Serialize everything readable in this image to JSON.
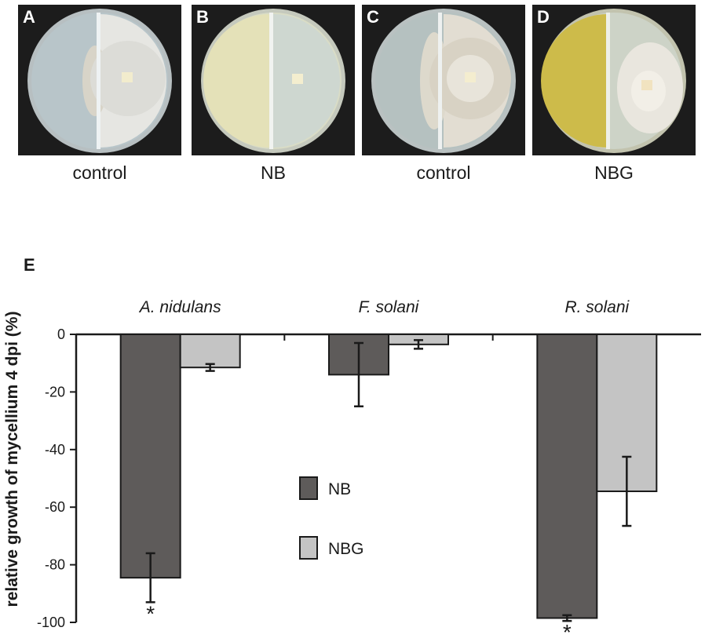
{
  "panels": [
    {
      "letter": "A",
      "caption": "control"
    },
    {
      "letter": "B",
      "caption": "NB"
    },
    {
      "letter": "C",
      "caption": "control"
    },
    {
      "letter": "D",
      "caption": "NBG"
    }
  ],
  "panel_e_letter": "E",
  "chart_data": {
    "type": "bar",
    "title": "",
    "xlabel": "",
    "ylabel": "relative growth of mycellium 4 dpi (%)",
    "ylim": [
      -100,
      0
    ],
    "yticks": [
      0,
      -20,
      -40,
      -60,
      -80,
      -100
    ],
    "ytick_labels": [
      "0",
      "-20",
      "-40",
      "-60",
      "-80",
      "-100"
    ],
    "categories": [
      "A. nidulans",
      "F. solani",
      "R. solani"
    ],
    "series": [
      {
        "name": "NB",
        "color": "#5e5b5a",
        "values": [
          -84.5,
          -14,
          -98.5
        ],
        "errors": [
          8.5,
          11,
          1
        ],
        "significance": [
          "*",
          "",
          "*"
        ]
      },
      {
        "name": "NBG",
        "color": "#c4c4c4",
        "values": [
          -11.5,
          -3.5,
          -54.5
        ],
        "errors": [
          1.2,
          1.5,
          12
        ],
        "significance": [
          "",
          "",
          ""
        ]
      }
    ],
    "legend_position": "center",
    "grid": false
  }
}
